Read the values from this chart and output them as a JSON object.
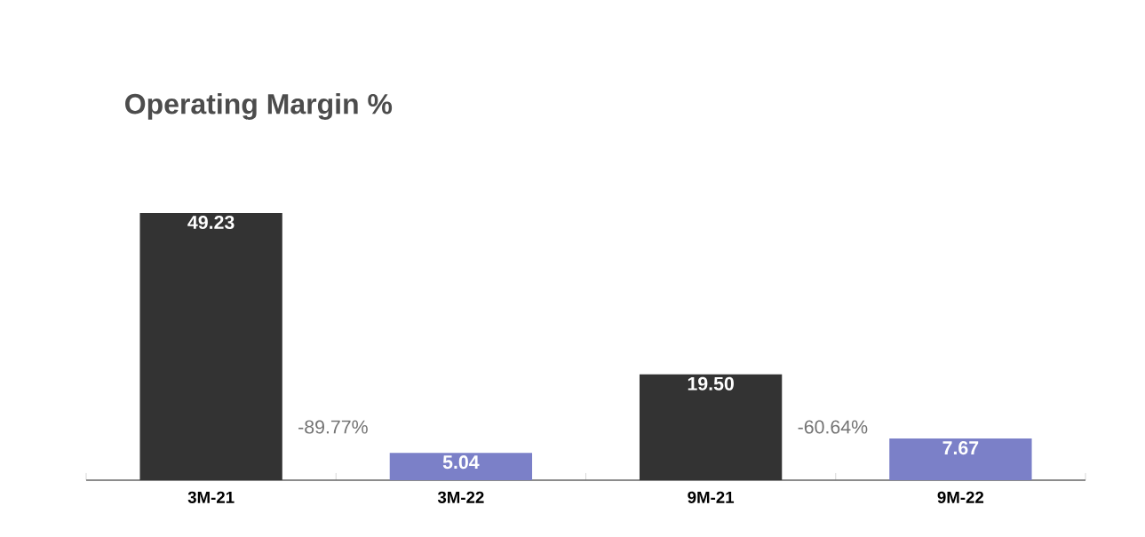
{
  "chart_data": {
    "type": "bar",
    "title": "Operating Margin %",
    "categories": [
      "3M-21",
      "3M-22",
      "9M-21",
      "9M-22"
    ],
    "values": [
      49.23,
      5.04,
      19.5,
      7.67
    ],
    "colors": [
      "#333333",
      "#7b80c8",
      "#333333",
      "#7b80c8"
    ],
    "value_labels": [
      "49.23",
      "5.04",
      "19.50",
      "7.67"
    ],
    "annotations": [
      "-89.77%",
      "-60.64%"
    ]
  }
}
